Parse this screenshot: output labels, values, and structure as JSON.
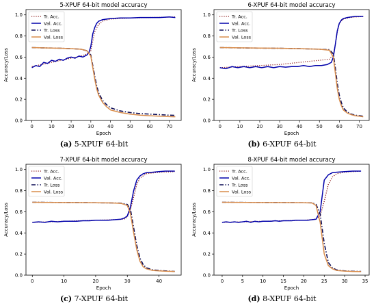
{
  "figure": {
    "panels": [
      {
        "label": "(a)",
        "caption": "5-XPUF 64-bit"
      },
      {
        "label": "(b)",
        "caption": "6-XPUF 64-bit"
      },
      {
        "label": "(c)",
        "caption": "7-XPUF 64-bit"
      },
      {
        "label": "(d)",
        "caption": "8-XPUF 64-bit"
      }
    ]
  },
  "chart_data": [
    {
      "type": "line",
      "title": "5-XPUF 64-bit model accuracy",
      "xlabel": "Epoch",
      "ylabel": "Accuracy/Loss",
      "xlim": [
        -3,
        76
      ],
      "ylim": [
        0,
        1.05
      ],
      "xticks": [
        0,
        10,
        20,
        30,
        40,
        50,
        60,
        70
      ],
      "yticks": [
        0.0,
        0.2,
        0.4,
        0.6,
        0.8,
        1.0
      ],
      "legend_position": "top-left",
      "grid": false,
      "series": [
        {
          "name": "Tr. Acc.",
          "color": "#8b1a1a",
          "style": "dotted",
          "x": [
            0,
            5,
            10,
            15,
            20,
            25,
            28,
            30,
            31,
            32,
            34,
            36,
            40,
            50,
            60,
            73
          ],
          "y": [
            0.51,
            0.53,
            0.55,
            0.57,
            0.59,
            0.61,
            0.63,
            0.66,
            0.75,
            0.84,
            0.91,
            0.94,
            0.96,
            0.97,
            0.975,
            0.98
          ]
        },
        {
          "name": "Val. Acc.",
          "color": "#0000aa",
          "style": "solid",
          "x": [
            0,
            2,
            4,
            6,
            8,
            10,
            12,
            14,
            16,
            18,
            20,
            22,
            24,
            26,
            28,
            29,
            30,
            31,
            32,
            33,
            34,
            36,
            38,
            40,
            45,
            50,
            55,
            60,
            65,
            70,
            73
          ],
          "y": [
            0.5,
            0.52,
            0.51,
            0.55,
            0.54,
            0.57,
            0.56,
            0.58,
            0.57,
            0.59,
            0.6,
            0.59,
            0.61,
            0.6,
            0.62,
            0.64,
            0.7,
            0.82,
            0.88,
            0.92,
            0.94,
            0.955,
            0.96,
            0.965,
            0.97,
            0.97,
            0.975,
            0.975,
            0.975,
            0.98,
            0.975
          ]
        },
        {
          "name": "Tr. Loss",
          "color": "#0b0b55",
          "style": "dashdot",
          "x": [
            0,
            5,
            10,
            15,
            20,
            25,
            28,
            30,
            31,
            32,
            33,
            34,
            36,
            38,
            40,
            45,
            50,
            55,
            60,
            65,
            70,
            73
          ],
          "y": [
            0.69,
            0.688,
            0.686,
            0.684,
            0.68,
            0.675,
            0.66,
            0.62,
            0.52,
            0.42,
            0.33,
            0.26,
            0.19,
            0.15,
            0.12,
            0.09,
            0.075,
            0.065,
            0.06,
            0.055,
            0.05,
            0.048
          ]
        },
        {
          "name": "Val. Loss",
          "color": "#d98c4a",
          "style": "solid",
          "x": [
            0,
            5,
            10,
            15,
            20,
            25,
            28,
            30,
            31,
            32,
            33,
            34,
            36,
            38,
            40,
            45,
            50,
            55,
            60,
            65,
            70,
            73
          ],
          "y": [
            0.69,
            0.688,
            0.686,
            0.684,
            0.68,
            0.675,
            0.66,
            0.61,
            0.5,
            0.39,
            0.3,
            0.24,
            0.17,
            0.13,
            0.1,
            0.075,
            0.06,
            0.05,
            0.045,
            0.04,
            0.036,
            0.035
          ]
        }
      ]
    },
    {
      "type": "line",
      "title": "6-XPUF 64-bit model accuracy",
      "xlabel": "Epoch",
      "ylabel": "Accuracy/Loss",
      "xlim": [
        -3,
        75
      ],
      "ylim": [
        0,
        1.05
      ],
      "xticks": [
        0,
        10,
        20,
        30,
        40,
        50,
        60,
        70
      ],
      "yticks": [
        0.0,
        0.2,
        0.4,
        0.6,
        0.8,
        1.0
      ],
      "legend_position": "top-left",
      "grid": false,
      "series": [
        {
          "name": "Tr. Acc.",
          "color": "#8b1a1a",
          "style": "dotted",
          "x": [
            0,
            10,
            20,
            30,
            40,
            50,
            55,
            57,
            58,
            59,
            60,
            62,
            65,
            68,
            72
          ],
          "y": [
            0.5,
            0.51,
            0.52,
            0.53,
            0.55,
            0.57,
            0.58,
            0.62,
            0.72,
            0.84,
            0.92,
            0.96,
            0.975,
            0.98,
            0.985
          ]
        },
        {
          "name": "Val. Acc.",
          "color": "#0000aa",
          "style": "solid",
          "x": [
            0,
            3,
            6,
            9,
            12,
            15,
            18,
            21,
            24,
            27,
            30,
            33,
            36,
            39,
            42,
            45,
            48,
            51,
            54,
            56,
            57,
            58,
            59,
            60,
            61,
            62,
            64,
            66,
            68,
            70,
            72
          ],
          "y": [
            0.5,
            0.49,
            0.51,
            0.5,
            0.51,
            0.5,
            0.51,
            0.5,
            0.51,
            0.5,
            0.51,
            0.505,
            0.51,
            0.51,
            0.52,
            0.51,
            0.52,
            0.52,
            0.53,
            0.55,
            0.6,
            0.72,
            0.85,
            0.92,
            0.95,
            0.965,
            0.975,
            0.98,
            0.985,
            0.985,
            0.985
          ]
        },
        {
          "name": "Tr. Loss",
          "color": "#0b0b55",
          "style": "dashdot",
          "x": [
            0,
            10,
            20,
            30,
            40,
            50,
            55,
            57,
            58,
            59,
            60,
            61,
            62,
            64,
            66,
            68,
            70,
            72
          ],
          "y": [
            0.69,
            0.687,
            0.685,
            0.683,
            0.68,
            0.675,
            0.67,
            0.63,
            0.5,
            0.35,
            0.24,
            0.17,
            0.12,
            0.08,
            0.06,
            0.05,
            0.045,
            0.04
          ]
        },
        {
          "name": "Val. Loss",
          "color": "#d98c4a",
          "style": "solid",
          "x": [
            0,
            10,
            20,
            30,
            40,
            50,
            55,
            57,
            58,
            59,
            60,
            61,
            62,
            64,
            66,
            68,
            70,
            72
          ],
          "y": [
            0.69,
            0.688,
            0.686,
            0.684,
            0.68,
            0.675,
            0.665,
            0.6,
            0.45,
            0.3,
            0.2,
            0.14,
            0.1,
            0.07,
            0.055,
            0.045,
            0.04,
            0.035
          ]
        }
      ]
    },
    {
      "type": "line",
      "title": "7-XPUF 64-bit model accuracy",
      "xlabel": "Epoch",
      "ylabel": "Accuracy/Loss",
      "xlim": [
        -2,
        47
      ],
      "ylim": [
        0,
        1.05
      ],
      "xticks": [
        0,
        10,
        20,
        30,
        40
      ],
      "yticks": [
        0.0,
        0.2,
        0.4,
        0.6,
        0.8,
        1.0
      ],
      "legend_position": "top-left",
      "grid": false,
      "series": [
        {
          "name": "Tr. Acc.",
          "color": "#8b1a1a",
          "style": "dotted",
          "x": [
            0,
            5,
            10,
            15,
            20,
            25,
            29,
            30,
            31,
            32,
            33,
            34,
            36,
            40,
            45
          ],
          "y": [
            0.5,
            0.505,
            0.51,
            0.515,
            0.52,
            0.525,
            0.53,
            0.55,
            0.62,
            0.74,
            0.86,
            0.92,
            0.96,
            0.975,
            0.98
          ]
        },
        {
          "name": "Val. Acc.",
          "color": "#0000aa",
          "style": "solid",
          "x": [
            0,
            2,
            4,
            6,
            8,
            10,
            12,
            14,
            16,
            18,
            20,
            22,
            24,
            26,
            28,
            29,
            30,
            31,
            32,
            33,
            34,
            35,
            36,
            38,
            40,
            42,
            45
          ],
          "y": [
            0.5,
            0.505,
            0.5,
            0.51,
            0.505,
            0.51,
            0.51,
            0.51,
            0.515,
            0.515,
            0.52,
            0.52,
            0.52,
            0.525,
            0.53,
            0.54,
            0.56,
            0.65,
            0.8,
            0.9,
            0.94,
            0.96,
            0.97,
            0.975,
            0.98,
            0.985,
            0.985
          ]
        },
        {
          "name": "Tr. Loss",
          "color": "#0b0b55",
          "style": "dashdot",
          "x": [
            0,
            5,
            10,
            15,
            20,
            25,
            28,
            30,
            31,
            32,
            33,
            34,
            35,
            36,
            38,
            40,
            42,
            45
          ],
          "y": [
            0.69,
            0.689,
            0.688,
            0.687,
            0.686,
            0.684,
            0.682,
            0.67,
            0.62,
            0.45,
            0.28,
            0.16,
            0.1,
            0.07,
            0.05,
            0.045,
            0.04,
            0.035
          ]
        },
        {
          "name": "Val. Loss",
          "color": "#d98c4a",
          "style": "solid",
          "x": [
            0,
            5,
            10,
            15,
            20,
            25,
            28,
            30,
            31,
            32,
            33,
            34,
            35,
            36,
            38,
            40,
            42,
            45
          ],
          "y": [
            0.69,
            0.689,
            0.688,
            0.687,
            0.686,
            0.684,
            0.68,
            0.66,
            0.58,
            0.4,
            0.24,
            0.13,
            0.08,
            0.06,
            0.045,
            0.04,
            0.037,
            0.035
          ]
        }
      ]
    },
    {
      "type": "line",
      "title": "8-XPUF 64-bit model accuracy",
      "xlabel": "Epoch",
      "ylabel": "Accuracy/Loss",
      "xlim": [
        -2,
        36
      ],
      "ylim": [
        0,
        1.05
      ],
      "xticks": [
        0,
        5,
        10,
        15,
        20,
        25,
        30,
        35
      ],
      "yticks": [
        0.0,
        0.2,
        0.4,
        0.6,
        0.8,
        1.0
      ],
      "legend_position": "top-left",
      "grid": false,
      "series": [
        {
          "name": "Tr. Acc.",
          "color": "#8b1a1a",
          "style": "dotted",
          "x": [
            0,
            5,
            10,
            15,
            20,
            23,
            24,
            25,
            26,
            27,
            28,
            30,
            32,
            34
          ],
          "y": [
            0.5,
            0.505,
            0.51,
            0.515,
            0.52,
            0.53,
            0.56,
            0.7,
            0.86,
            0.93,
            0.96,
            0.975,
            0.98,
            0.985
          ]
        },
        {
          "name": "Val. Acc.",
          "color": "#0000aa",
          "style": "solid",
          "x": [
            0,
            1,
            2,
            3,
            4,
            5,
            6,
            7,
            8,
            9,
            10,
            11,
            12,
            13,
            14,
            15,
            16,
            17,
            18,
            19,
            20,
            21,
            22,
            23,
            24,
            25,
            26,
            27,
            28,
            30,
            32,
            34
          ],
          "y": [
            0.5,
            0.505,
            0.5,
            0.505,
            0.5,
            0.505,
            0.51,
            0.5,
            0.51,
            0.505,
            0.51,
            0.51,
            0.51,
            0.515,
            0.51,
            0.515,
            0.515,
            0.515,
            0.52,
            0.52,
            0.52,
            0.52,
            0.525,
            0.53,
            0.6,
            0.9,
            0.95,
            0.97,
            0.975,
            0.98,
            0.985,
            0.985
          ]
        },
        {
          "name": "Tr. Loss",
          "color": "#0b0b55",
          "style": "dashdot",
          "x": [
            0,
            5,
            10,
            15,
            20,
            22,
            23,
            24,
            25,
            26,
            27,
            28,
            30,
            32,
            34
          ],
          "y": [
            0.69,
            0.689,
            0.688,
            0.687,
            0.686,
            0.685,
            0.67,
            0.58,
            0.3,
            0.12,
            0.07,
            0.05,
            0.04,
            0.037,
            0.035
          ]
        },
        {
          "name": "Val. Loss",
          "color": "#d98c4a",
          "style": "solid",
          "x": [
            0,
            5,
            10,
            15,
            20,
            22,
            23,
            24,
            25,
            26,
            27,
            28,
            30,
            32,
            34
          ],
          "y": [
            0.69,
            0.689,
            0.688,
            0.687,
            0.686,
            0.684,
            0.66,
            0.5,
            0.2,
            0.09,
            0.06,
            0.045,
            0.038,
            0.035,
            0.033
          ]
        }
      ]
    }
  ]
}
